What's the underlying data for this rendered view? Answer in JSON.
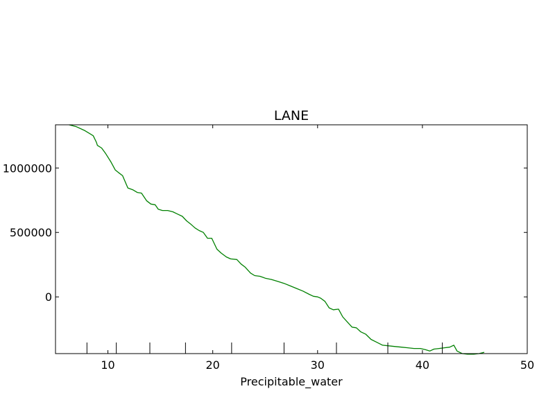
{
  "chart_data": {
    "type": "line",
    "title": "LANE",
    "xlabel": "Precipitable_water",
    "ylabel": "",
    "xlim": [
      5,
      50
    ],
    "ylim": [
      -440000,
      1335000
    ],
    "x_ticks": [
      10,
      20,
      30,
      40,
      50
    ],
    "y_ticks": [
      0,
      500000,
      1000000
    ],
    "grid": false,
    "series": [
      {
        "color": "#008000",
        "x": [
          6.3,
          7.0,
          7.8,
          8.6,
          8.9,
          9.0,
          9.4,
          9.8,
          10.3,
          10.7,
          11.0,
          11.4,
          11.9,
          12.4,
          12.8,
          13.2,
          13.7,
          14.1,
          14.5,
          14.8,
          15.2,
          15.7,
          16.2,
          16.7,
          17.1,
          17.5,
          17.9,
          18.3,
          18.7,
          19.1,
          19.5,
          19.9,
          20.4,
          20.8,
          21.3,
          21.7,
          22.3,
          22.7,
          23.1,
          23.6,
          24.0,
          24.5,
          25.0,
          25.6,
          26.2,
          26.8,
          27.4,
          28.0,
          28.6,
          29.2,
          29.6,
          30.0,
          30.3,
          30.7,
          31.1,
          31.5,
          32.0,
          32.4,
          32.9,
          33.3,
          33.7,
          34.1,
          34.6,
          35.1,
          35.6,
          36.2,
          36.8,
          37.4,
          38.0,
          38.6,
          39.2,
          39.8,
          40.3,
          40.7,
          41.1,
          41.6,
          42.1,
          42.6,
          43.0,
          43.3,
          43.8,
          44.3,
          44.9,
          45.4,
          45.9
        ],
        "y": [
          1335000,
          1320000,
          1290000,
          1250000,
          1200000,
          1175000,
          1155000,
          1110000,
          1045000,
          985000,
          965000,
          940000,
          845000,
          830000,
          810000,
          805000,
          745000,
          720000,
          715000,
          680000,
          670000,
          670000,
          660000,
          640000,
          625000,
          590000,
          565000,
          535000,
          515000,
          500000,
          455000,
          455000,
          370000,
          340000,
          310000,
          295000,
          290000,
          255000,
          230000,
          185000,
          165000,
          160000,
          145000,
          135000,
          120000,
          105000,
          85000,
          65000,
          45000,
          20000,
          5000,
          0,
          -10000,
          -35000,
          -85000,
          -100000,
          -95000,
          -155000,
          -200000,
          -235000,
          -240000,
          -270000,
          -290000,
          -330000,
          -350000,
          -375000,
          -380000,
          -385000,
          -390000,
          -395000,
          -400000,
          -400000,
          -410000,
          -420000,
          -405000,
          -400000,
          -395000,
          -390000,
          -375000,
          -420000,
          -440000,
          -445000,
          -445000,
          -440000,
          -430000
        ]
      }
    ],
    "rug_x": [
      8.0,
      10.8,
      14.0,
      17.4,
      21.8,
      26.8,
      31.8,
      36.7,
      41.9
    ]
  }
}
